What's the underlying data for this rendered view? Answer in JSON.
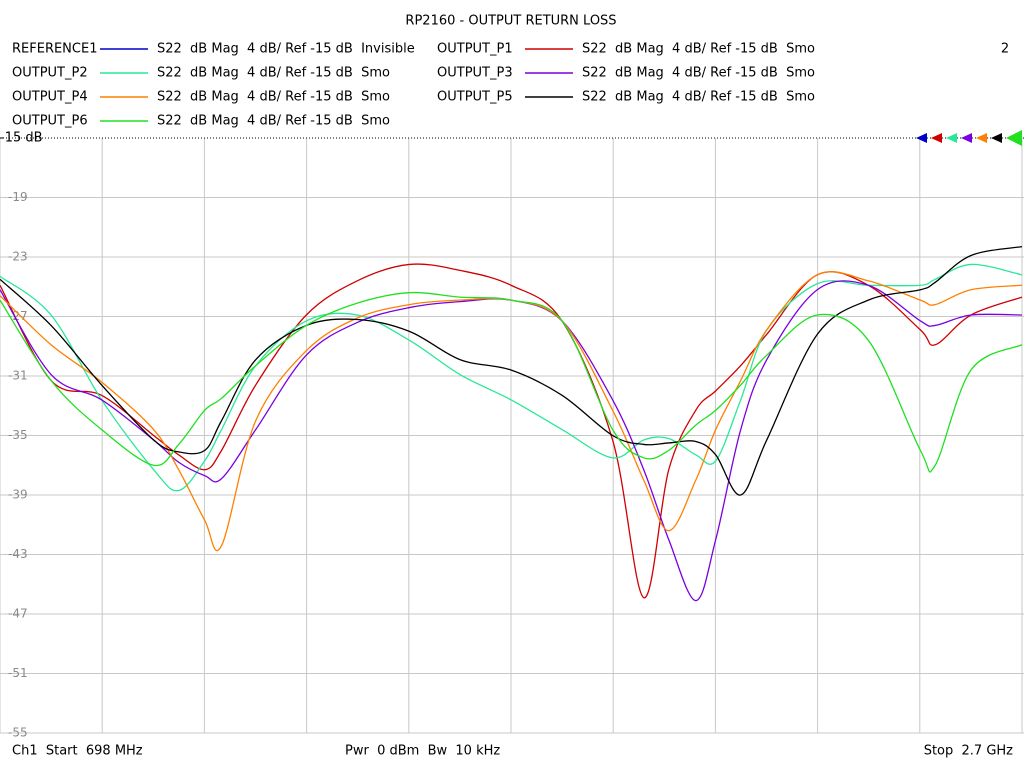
{
  "chart_data": {
    "type": "line",
    "title": "RP2160 - OUTPUT RETURN LOSS",
    "annotation": "2",
    "footer_left": "Ch1  Start  698 MHz",
    "footer_center": "Pwr  0 dBm  Bw  10 kHz",
    "footer_right": "Stop  2.7 GHz",
    "xlim": [
      698,
      2700
    ],
    "xgrid_divisions": 10,
    "ylim": [
      -55,
      -15
    ],
    "yticks": [
      {
        "value": -15,
        "label": "-15 dB"
      },
      -19,
      -23,
      -27,
      -31,
      -35,
      -39,
      -43,
      -47,
      -51,
      -55
    ],
    "grid": true,
    "x": [
      698,
      798,
      897,
      999,
      1048,
      1099,
      1132,
      1199,
      1298,
      1398,
      1500,
      1599,
      1699,
      1799,
      1898,
      1959,
      2008,
      2061,
      2100,
      2149,
      2200,
      2299,
      2399,
      2501,
      2530,
      2600,
      2700
    ],
    "series": [
      {
        "name": "REFERENCE1",
        "color": "#0000c8",
        "trace_format": "S22  dB Mag  4 dB/ Ref -15 dB  Invisible"
      },
      {
        "name": "OUTPUT_P1",
        "color": "#d00000",
        "trace_format": "S22  dB Mag  4 dB/ Ref -15 dB  Smo",
        "values": [
          -24.9,
          -31.3,
          -32.3,
          -35,
          -36.3,
          -37.3,
          -36,
          -31.6,
          -26.9,
          -24.6,
          -23.5,
          -23.9,
          -24.9,
          -27.3,
          -35.3,
          -45.9,
          -37.3,
          -33.3,
          -32,
          -30.3,
          -28.2,
          -24.2,
          -24.9,
          -27.9,
          -28.9,
          -26.9,
          -25.7
        ]
      },
      {
        "name": "OUTPUT_P2",
        "color": "#28e898",
        "trace_format": "S22  dB Mag  4 dB/ Ref -15 dB  Smo",
        "values": [
          -24.3,
          -26.9,
          -32.6,
          -37.3,
          -38.7,
          -36.7,
          -34.6,
          -30.3,
          -27.3,
          -26.9,
          -28.6,
          -30.9,
          -32.6,
          -34.6,
          -36.5,
          -35.3,
          -35.2,
          -36.3,
          -36.7,
          -32.6,
          -27.9,
          -24.8,
          -24.9,
          -24.9,
          -24.5,
          -23.5,
          -24.2
        ]
      },
      {
        "name": "OUTPUT_P3",
        "color": "#7a00e0",
        "trace_format": "S22  dB Mag  4 dB/ Ref -15 dB  Smo",
        "values": [
          -25.2,
          -30.9,
          -32.6,
          -35.3,
          -36.8,
          -37.7,
          -37.9,
          -34.6,
          -29.6,
          -27.4,
          -26.4,
          -26,
          -25.9,
          -27.3,
          -32.6,
          -37.3,
          -42,
          -46.1,
          -42,
          -34.6,
          -29.9,
          -25.2,
          -24.9,
          -27.3,
          -27.6,
          -26.9,
          -26.9
        ]
      },
      {
        "name": "OUTPUT_P4",
        "color": "#ff8000",
        "trace_format": "S22  dB Mag  4 dB/ Ref -15 dB  Smo",
        "values": [
          -25.6,
          -28.9,
          -31.4,
          -34.6,
          -37.3,
          -40.7,
          -42.4,
          -34,
          -29.3,
          -27.1,
          -26.2,
          -25.9,
          -25.9,
          -27.3,
          -33.3,
          -38,
          -41.4,
          -38,
          -34.6,
          -31.3,
          -27.9,
          -24.2,
          -24.6,
          -25.9,
          -26.2,
          -25.2,
          -24.9
        ]
      },
      {
        "name": "OUTPUT_P5",
        "color": "#000000",
        "trace_format": "S22  dB Mag  4 dB/ Ref -15 dB  Smo",
        "values": [
          -24.5,
          -27.6,
          -31.6,
          -35.3,
          -36.1,
          -36,
          -34,
          -29.9,
          -27.6,
          -27.2,
          -28,
          -29.9,
          -30.6,
          -32.3,
          -35,
          -35.6,
          -35.5,
          -35.4,
          -36.3,
          -39,
          -35.3,
          -28.2,
          -25.9,
          -25.2,
          -24.7,
          -22.9,
          -22.3
        ]
      },
      {
        "name": "OUTPUT_P6",
        "color": "#20e020",
        "trace_format": "S22  dB Mag  4 dB/ Ref -15 dB  Smo",
        "values": [
          -25.9,
          -31.3,
          -34.6,
          -37,
          -35.6,
          -33.3,
          -32.5,
          -30.3,
          -27.6,
          -26.1,
          -25.4,
          -25.7,
          -25.9,
          -27.3,
          -34.6,
          -36.5,
          -36,
          -34.3,
          -33.3,
          -31.6,
          -29.6,
          -26.9,
          -28.6,
          -36,
          -37,
          -30.6,
          -28.9
        ]
      }
    ]
  }
}
